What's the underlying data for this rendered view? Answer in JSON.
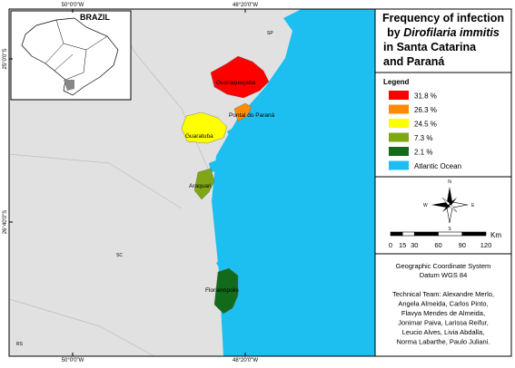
{
  "map": {
    "coordinates": {
      "top": [
        "50°0'0\"W",
        "48°20'0\"W"
      ],
      "bottom": [
        "50°0'0\"W",
        "48°20'0\"W"
      ],
      "left": [
        "25°0'0\"S",
        "26°40'0\"S"
      ]
    },
    "inset": {
      "label": "BRAZIL"
    },
    "places": [
      "SP",
      "SC",
      "RS"
    ],
    "regions": [
      {
        "label": "Guaraqueçaba",
        "color": "#ff0000"
      },
      {
        "label": "Pontal do Paraná",
        "color": "#ff8c00"
      },
      {
        "label": "Guaratuba",
        "color": "#ffff00"
      },
      {
        "label": "Araquari",
        "color": "#7fa614"
      },
      {
        "label": "Florianópolis",
        "color": "#116b1a"
      }
    ]
  },
  "panel": {
    "title": {
      "line1": "Frequency of infection",
      "by": "by",
      "species": "Dirofilaria immitis",
      "line3": "in Santa Catarina",
      "line4": "and Paraná"
    },
    "legend": {
      "title": "Legend",
      "items": [
        {
          "label": "31.8 %",
          "color": "#ff0000"
        },
        {
          "label": "26.3 %",
          "color": "#ff8c00"
        },
        {
          "label": "24.5 %",
          "color": "#ffff00"
        },
        {
          "label": "7.3 %",
          "color": "#7fa614"
        },
        {
          "label": "2.1 %",
          "color": "#116b1a"
        },
        {
          "label": "Atlantic Ocean",
          "color": "#1cbff0"
        }
      ]
    },
    "compass": {
      "n": "N",
      "s": "S",
      "e": "E",
      "w": "W"
    },
    "scale": {
      "ticks": [
        "0",
        "15",
        "30",
        "60",
        "90",
        "120"
      ],
      "unit": "Km"
    },
    "info": [
      "Geographic Coordinate System",
      "Datum WGS 84"
    ],
    "team": [
      "Technical Team: Alexandre Merlo,",
      "Angela Almeida, Carlos Pinto,",
      "Flavya Mendes de Almeida,",
      "Jonimar Paiva, Larissa Reifur,",
      "Leucio Alves, Livia Abdalla,",
      "Norma Labarthe, Paulo Juliani."
    ]
  }
}
